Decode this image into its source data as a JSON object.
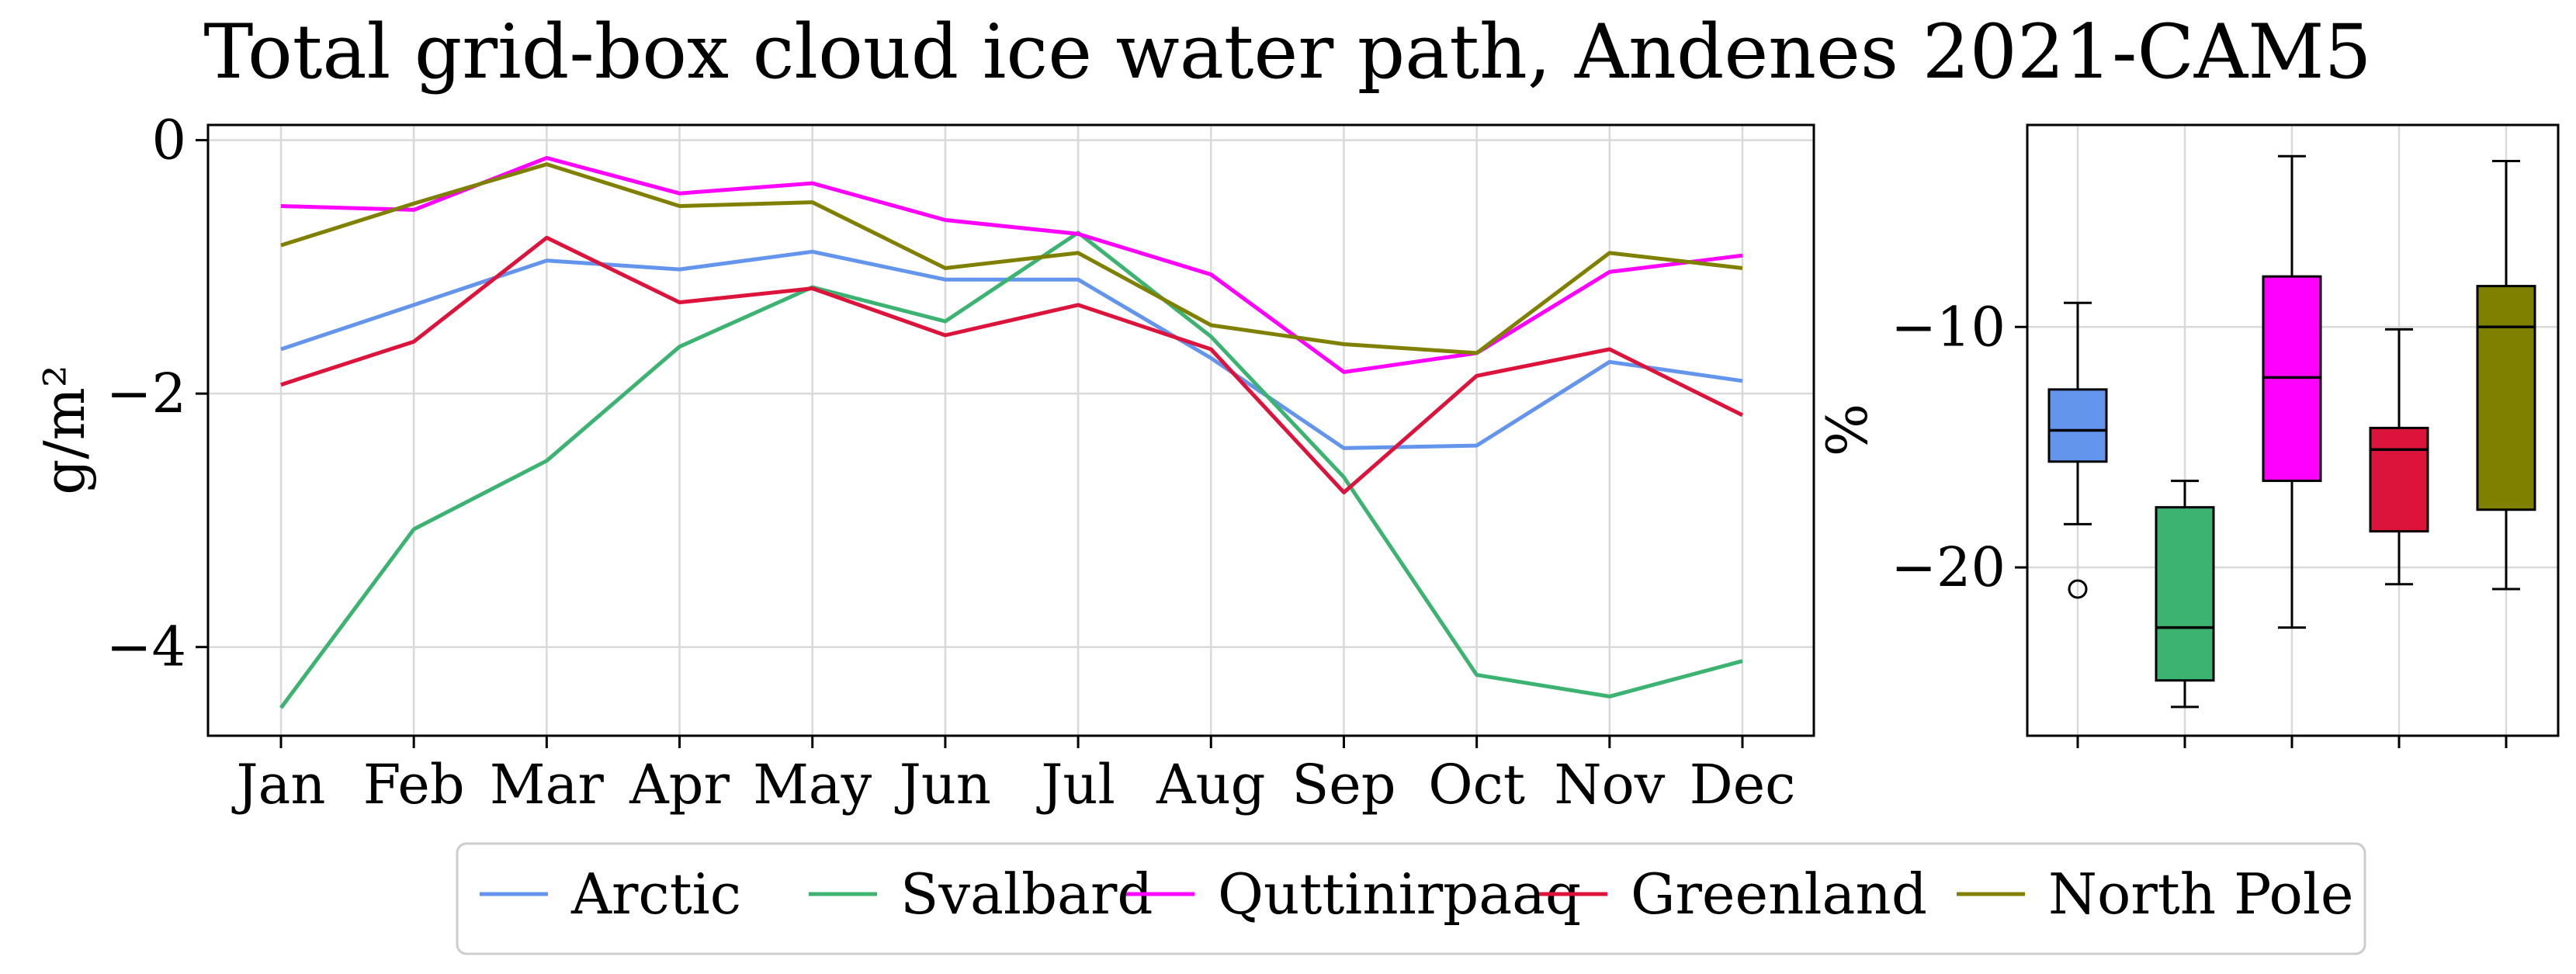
{
  "title": "Total grid-box cloud ice water path, Andenes 2021-CAM5",
  "chart_data": [
    {
      "type": "line",
      "ylabel": "g/m²",
      "xlabel": "",
      "categories": [
        "Jan",
        "Feb",
        "Mar",
        "Apr",
        "May",
        "Jun",
        "Jul",
        "Aug",
        "Sep",
        "Oct",
        "Nov",
        "Dec"
      ],
      "ylim": [
        -4.7,
        0.12
      ],
      "yticks": [
        0,
        -2,
        -4
      ],
      "ytick_labels": [
        "0",
        "−2",
        "−4"
      ],
      "grid": true,
      "series": [
        {
          "name": "Arctic",
          "color": "#6495ED",
          "values": [
            -1.65,
            -1.3,
            -0.95,
            -1.02,
            -0.88,
            -1.1,
            -1.1,
            -1.72,
            -2.43,
            -2.41,
            -1.75,
            -1.9
          ]
        },
        {
          "name": "Svalbard",
          "color": "#3CB371",
          "values": [
            -4.48,
            -3.07,
            -2.53,
            -1.63,
            -1.16,
            -1.43,
            -0.73,
            -1.55,
            -2.66,
            -4.22,
            -4.39,
            -4.11
          ]
        },
        {
          "name": "Quttinirpaaq",
          "color": "#FF00FF",
          "values": [
            -0.52,
            -0.55,
            -0.14,
            -0.42,
            -0.34,
            -0.63,
            -0.74,
            -1.06,
            -1.83,
            -1.68,
            -1.04,
            -0.91
          ]
        },
        {
          "name": "Greenland",
          "color": "#DC143C",
          "values": [
            -1.93,
            -1.59,
            -0.77,
            -1.28,
            -1.17,
            -1.54,
            -1.3,
            -1.65,
            -2.78,
            -1.86,
            -1.65,
            -2.17
          ]
        },
        {
          "name": "North Pole",
          "color": "#808000",
          "values": [
            -0.83,
            -0.5,
            -0.19,
            -0.52,
            -0.49,
            -1.01,
            -0.89,
            -1.46,
            -1.61,
            -1.68,
            -0.89,
            -1.01
          ]
        }
      ]
    },
    {
      "type": "box",
      "ylabel": "%",
      "xlabel": "",
      "ylim": [
        -27.0,
        -1.6
      ],
      "yticks": [
        -10,
        -20
      ],
      "ytick_labels": [
        "−10",
        "−20"
      ],
      "grid": true,
      "boxes": [
        {
          "name": "Arctic",
          "color": "#6495ED",
          "whislo": -18.2,
          "q1": -15.6,
          "med": -14.3,
          "q3": -12.6,
          "whishi": -9.0,
          "fliers": [
            -20.9
          ]
        },
        {
          "name": "Svalbard",
          "color": "#3CB371",
          "whislo": -25.8,
          "q1": -24.7,
          "med": -22.5,
          "q3": -17.5,
          "whishi": -16.4,
          "fliers": []
        },
        {
          "name": "Quttinirpaaq",
          "color": "#FF00FF",
          "whislo": -22.5,
          "q1": -16.4,
          "med": -12.1,
          "q3": -7.9,
          "whishi": -2.9,
          "fliers": []
        },
        {
          "name": "Greenland",
          "color": "#DC143C",
          "whislo": -20.7,
          "q1": -18.5,
          "med": -15.1,
          "q3": -14.2,
          "whishi": -10.1,
          "fliers": []
        },
        {
          "name": "North Pole",
          "color": "#808000",
          "whislo": -20.9,
          "q1": -17.6,
          "med": -10.0,
          "q3": -8.3,
          "whishi": -3.1,
          "fliers": []
        }
      ]
    }
  ],
  "legend": {
    "placement": "bottom-center",
    "entries": [
      "Arctic",
      "Svalbard",
      "Quttinirpaaq",
      "Greenland",
      "North Pole"
    ]
  }
}
